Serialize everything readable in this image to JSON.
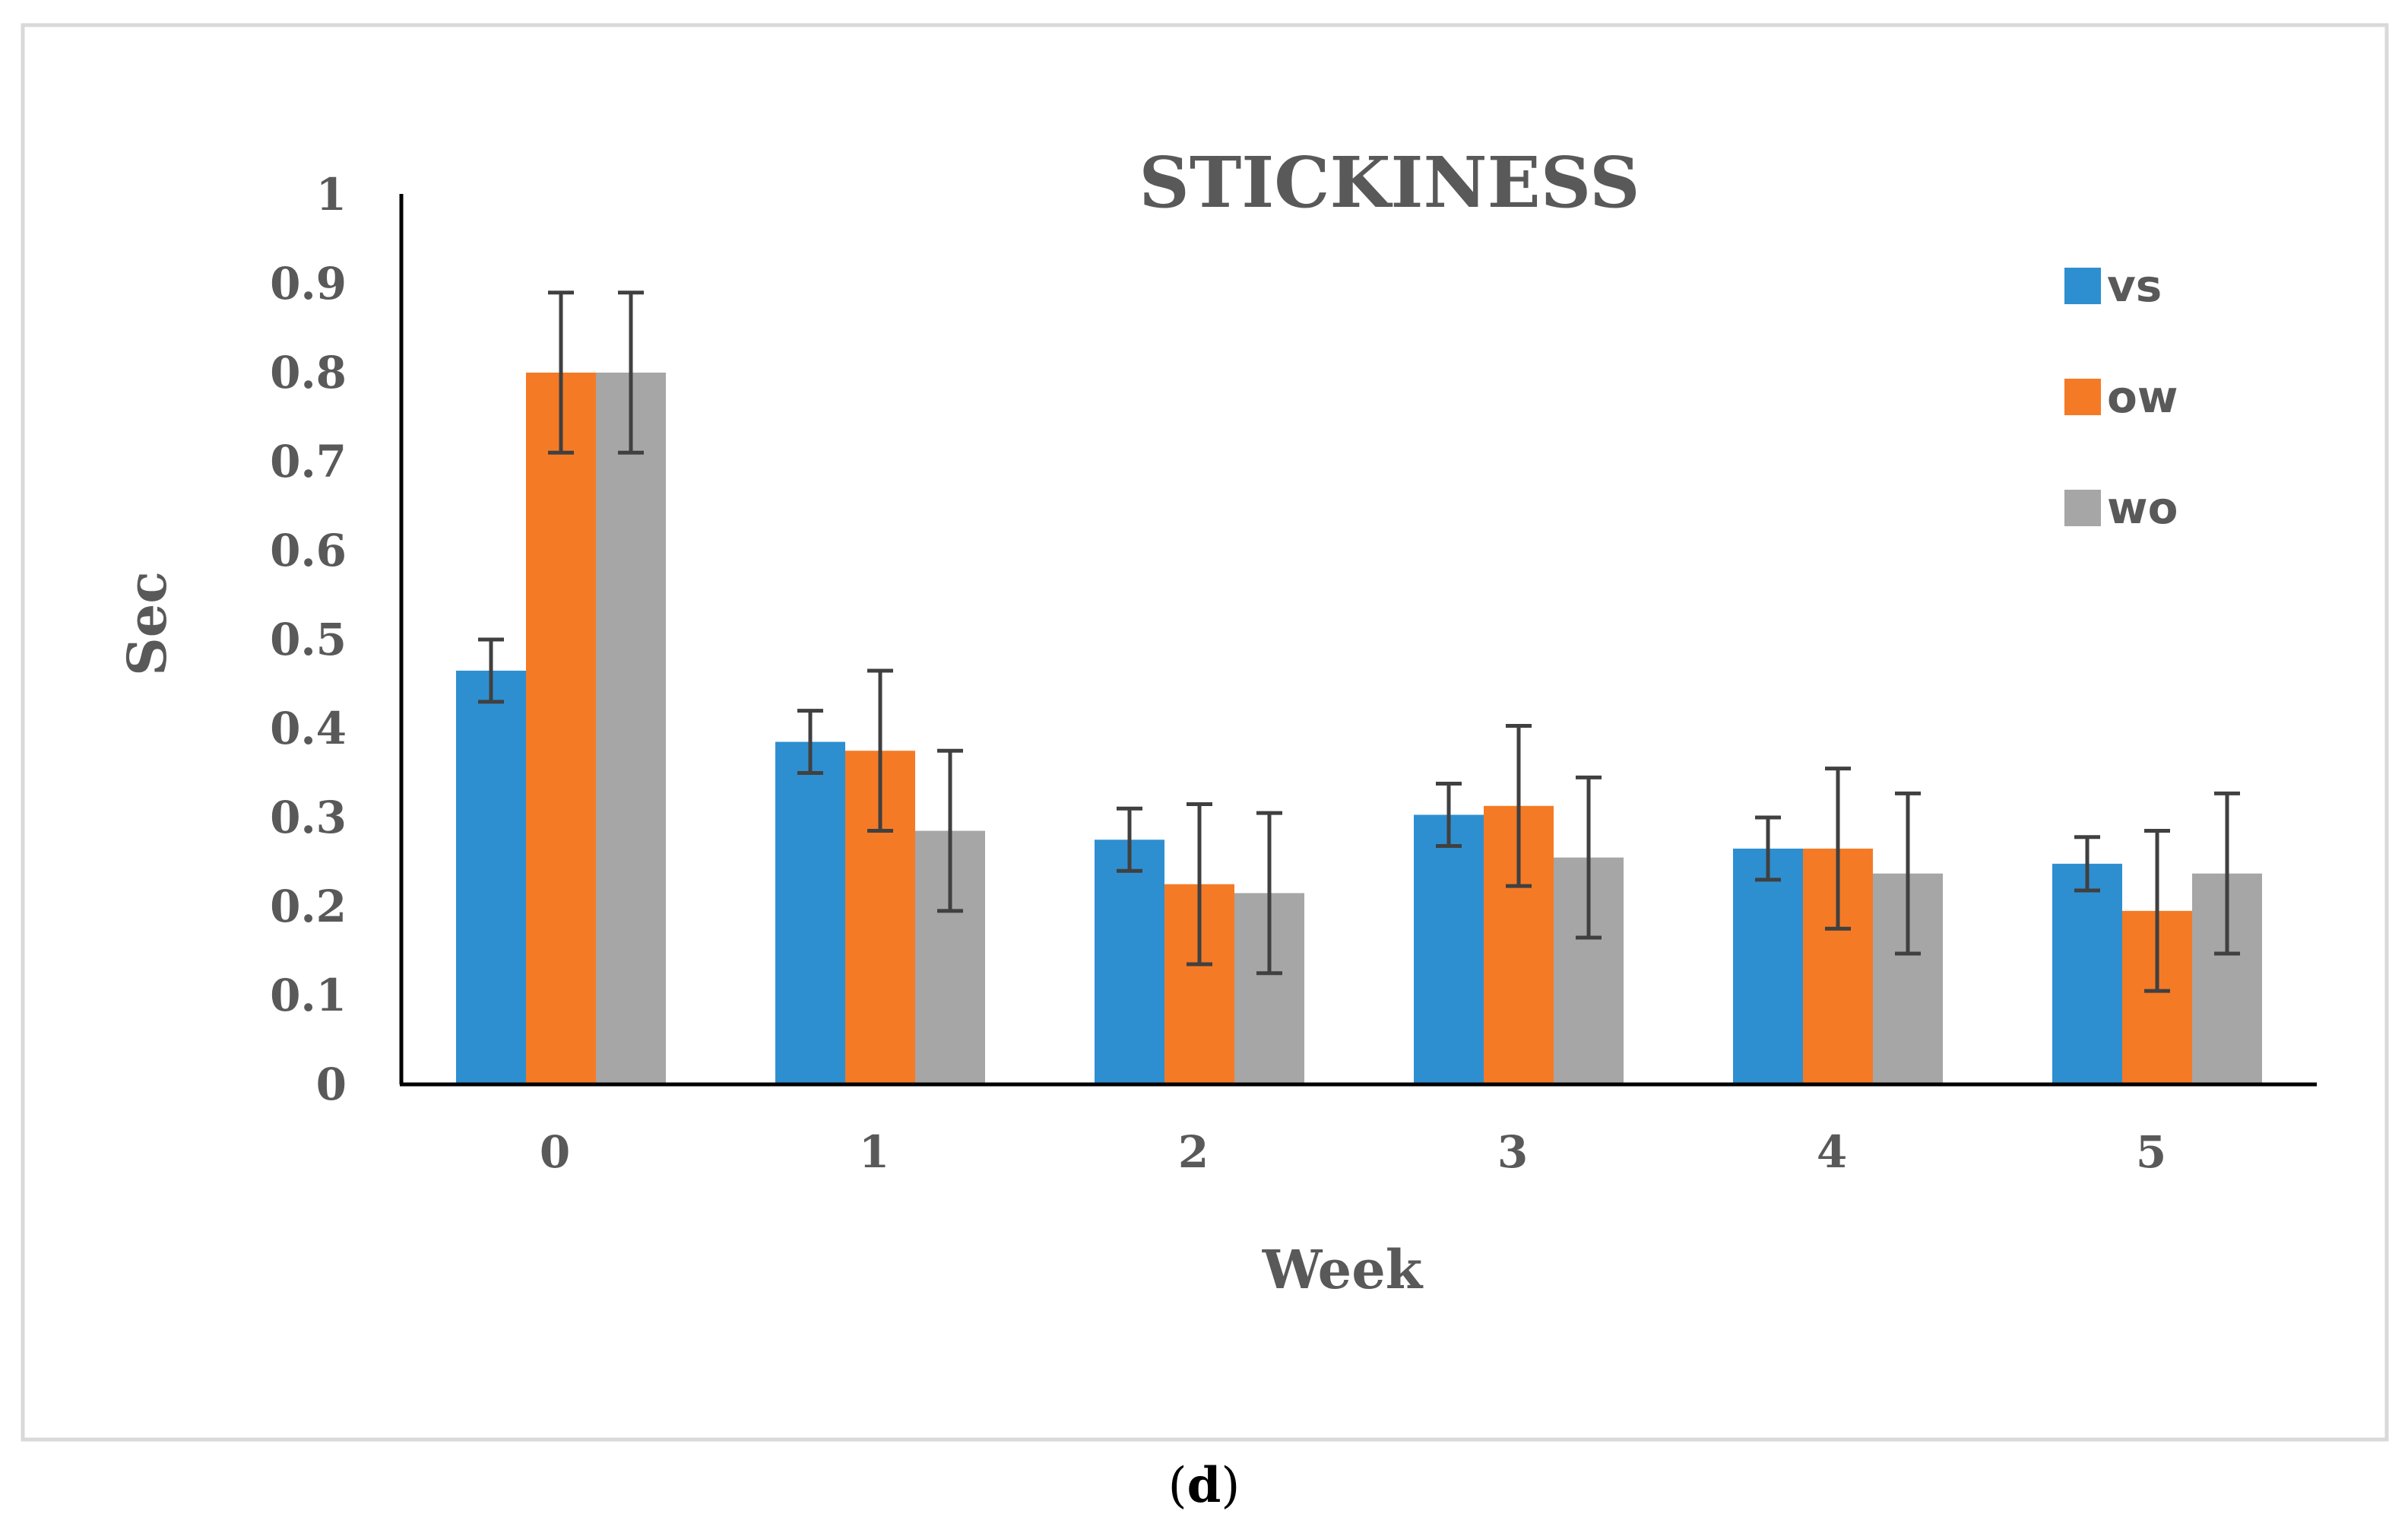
{
  "chart_data": {
    "type": "bar",
    "title": "STICKINESS",
    "xlabel": "Week",
    "ylabel": "Sec",
    "ylim": [
      0,
      1
    ],
    "yticks": [
      "0",
      "0.1",
      "0.2",
      "0.3",
      "0.4",
      "0.5",
      "0.6",
      "0.7",
      "0.8",
      "0.9",
      "1"
    ],
    "categories": [
      "0",
      "1",
      "2",
      "3",
      "4",
      "5"
    ],
    "legend_position": "top-right",
    "grid": false,
    "series": [
      {
        "name": "vs",
        "color": "#2e8fd0",
        "values": [
          0.465,
          0.385,
          0.275,
          0.303,
          0.265,
          0.248
        ],
        "errors": [
          0.035,
          0.035,
          0.035,
          0.035,
          0.035,
          0.03
        ]
      },
      {
        "name": "ow",
        "color": "#f57a25",
        "values": [
          0.8,
          0.375,
          0.225,
          0.313,
          0.265,
          0.195
        ],
        "errors": [
          0.09,
          0.09,
          0.09,
          0.09,
          0.09,
          0.09
        ]
      },
      {
        "name": "wo",
        "color": "#a6a6a6",
        "values": [
          0.8,
          0.285,
          0.215,
          0.255,
          0.237,
          0.237
        ],
        "errors": [
          0.09,
          0.09,
          0.09,
          0.09,
          0.09,
          0.09
        ]
      }
    ]
  },
  "caption": {
    "open": "(",
    "letter": "d",
    "close": ")"
  }
}
